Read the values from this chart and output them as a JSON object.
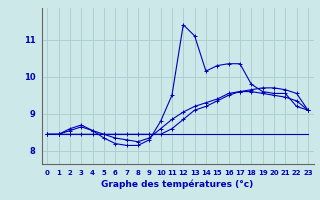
{
  "title": "Graphe des températures (°c)",
  "background_color": "#cce8e8",
  "grid_color": "#aacccc",
  "line_color": "#0000bb",
  "xlim": [
    -0.5,
    23.5
  ],
  "ylim": [
    7.65,
    11.85
  ],
  "xticks": [
    0,
    1,
    2,
    3,
    4,
    5,
    6,
    7,
    8,
    9,
    10,
    11,
    12,
    13,
    14,
    15,
    16,
    17,
    18,
    19,
    20,
    21,
    22,
    23
  ],
  "yticks": [
    8,
    9,
    10,
    11
  ],
  "line1_x": [
    0,
    1,
    2,
    3,
    4,
    5,
    6,
    7,
    8,
    9,
    10,
    11,
    12,
    13,
    14,
    15,
    16,
    17,
    18,
    19,
    20,
    21,
    22,
    23
  ],
  "line1_y": [
    8.45,
    8.45,
    8.6,
    8.7,
    8.55,
    8.35,
    8.2,
    8.15,
    8.15,
    8.3,
    8.8,
    9.5,
    11.4,
    11.1,
    10.15,
    10.3,
    10.35,
    10.35,
    9.8,
    9.6,
    9.55,
    9.55,
    9.2,
    9.1
  ],
  "line2_x": [
    0,
    1,
    2,
    3,
    4,
    5,
    6,
    7,
    8,
    9,
    10,
    11,
    12,
    13,
    14,
    15,
    16,
    17,
    18,
    19,
    20,
    21,
    22,
    23
  ],
  "line2_y": [
    8.45,
    8.45,
    8.45,
    8.45,
    8.45,
    8.45,
    8.45,
    8.45,
    8.45,
    8.45,
    8.45,
    8.6,
    8.85,
    9.1,
    9.2,
    9.35,
    9.5,
    9.6,
    9.65,
    9.7,
    9.7,
    9.65,
    9.55,
    9.1
  ],
  "line3_x": [
    0,
    1,
    2,
    3,
    4,
    5,
    6,
    7,
    8,
    9,
    10,
    11,
    12,
    13,
    14,
    15,
    16,
    17,
    18,
    19,
    20,
    21,
    22,
    23
  ],
  "line3_y": [
    8.45,
    8.45,
    8.55,
    8.65,
    8.55,
    8.45,
    8.35,
    8.3,
    8.25,
    8.35,
    8.6,
    8.85,
    9.05,
    9.2,
    9.3,
    9.4,
    9.55,
    9.6,
    9.6,
    9.55,
    9.5,
    9.45,
    9.35,
    9.1
  ],
  "line4_x": [
    0,
    23
  ],
  "line4_y": [
    8.45,
    8.45
  ]
}
